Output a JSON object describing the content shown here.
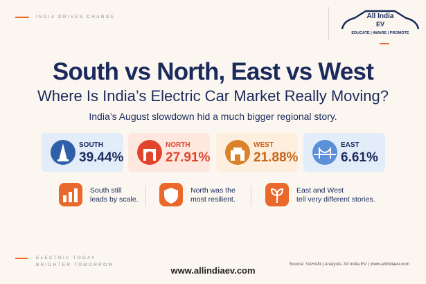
{
  "header": {
    "tagline": "INDIA DRIVES CHANGE",
    "logo": {
      "name": "All India",
      "badge": "EV",
      "motto": "EDUCATE | AWARE | PROMOTE"
    }
  },
  "title": "South vs North, East vs West",
  "subtitle": "Where Is India’s Electric Car Market Really Moving?",
  "intro": "India’s August slowdown hid a much bigger regional story.",
  "regions": [
    {
      "name": "SOUTH",
      "share": "39.44%"
    },
    {
      "name": "NORTH",
      "share": "27.91%"
    },
    {
      "name": "WEST",
      "share": "21.88%"
    },
    {
      "name": "EAST",
      "share": "6.61%"
    }
  ],
  "insights": [
    {
      "lines": [
        "South still",
        "leads by scale."
      ]
    },
    {
      "lines": [
        "North was the",
        "most resilient."
      ]
    },
    {
      "lines": [
        "East and West",
        "tell very different stories."
      ]
    }
  ],
  "footer": {
    "tagline": [
      "ELECTRIC TODAY",
      "BRIGHTER TOMORROW"
    ],
    "url": "www.allindiaev.com",
    "source": "Source: VAHAN  |  Analysis: All India EV  |  www.allindiaev.com"
  }
}
